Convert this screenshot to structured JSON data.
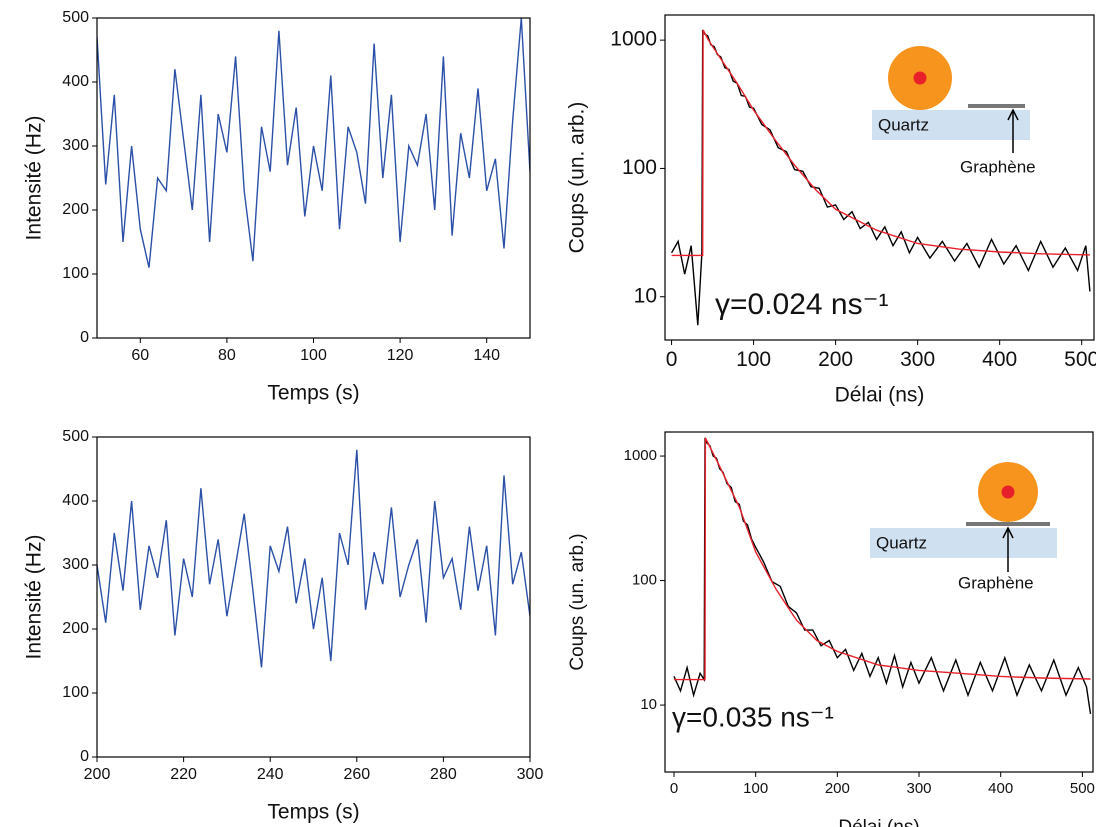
{
  "chart_data": [
    {
      "type": "line",
      "xlabel": "Temps (s)",
      "ylabel": "Intensité (Hz)",
      "xlim": [
        50,
        150
      ],
      "xticks": [
        60,
        80,
        100,
        120,
        140
      ],
      "ylim": [
        0,
        500
      ],
      "yticks": [
        0,
        100,
        200,
        300,
        400,
        500
      ],
      "series": [
        {
          "color": "#2b50a8",
          "x": [
            50,
            52,
            54,
            56,
            58,
            60,
            62,
            64,
            66,
            68,
            70,
            72,
            74,
            76,
            78,
            80,
            82,
            84,
            86,
            88,
            90,
            92,
            94,
            96,
            98,
            100,
            102,
            104,
            106,
            108,
            110,
            112,
            114,
            116,
            118,
            120,
            122,
            124,
            126,
            128,
            130,
            132,
            134,
            136,
            138,
            140,
            142,
            144,
            146,
            148,
            150
          ],
          "values": [
            470,
            240,
            380,
            150,
            300,
            170,
            110,
            250,
            230,
            420,
            310,
            200,
            380,
            150,
            350,
            290,
            440,
            230,
            120,
            330,
            260,
            480,
            270,
            360,
            190,
            300,
            230,
            410,
            170,
            330,
            290,
            210,
            460,
            250,
            380,
            150,
            300,
            270,
            350,
            200,
            440,
            160,
            320,
            250,
            390,
            230,
            280,
            140,
            340,
            500,
            260
          ]
        }
      ]
    },
    {
      "type": "line",
      "xlabel": "Temps (s)",
      "ylabel": "Intensité (Hz)",
      "xlim": [
        200,
        300
      ],
      "xticks": [
        200,
        220,
        240,
        260,
        280,
        300
      ],
      "ylim": [
        0,
        500
      ],
      "yticks": [
        0,
        100,
        200,
        300,
        400,
        500
      ],
      "series": [
        {
          "color": "#2b50a8",
          "x": [
            200,
            202,
            204,
            206,
            208,
            210,
            212,
            214,
            216,
            218,
            220,
            222,
            224,
            226,
            228,
            230,
            232,
            234,
            236,
            238,
            240,
            242,
            244,
            246,
            248,
            250,
            252,
            254,
            256,
            258,
            260,
            262,
            264,
            266,
            268,
            270,
            272,
            274,
            276,
            278,
            280,
            282,
            284,
            286,
            288,
            290,
            292,
            294,
            296,
            298,
            300
          ],
          "values": [
            300,
            210,
            350,
            260,
            400,
            230,
            330,
            280,
            370,
            190,
            310,
            250,
            420,
            270,
            340,
            220,
            300,
            380,
            260,
            140,
            330,
            290,
            360,
            240,
            310,
            200,
            280,
            150,
            350,
            300,
            480,
            230,
            320,
            270,
            390,
            250,
            300,
            340,
            210,
            400,
            280,
            310,
            230,
            360,
            260,
            330,
            190,
            440,
            270,
            320,
            220
          ]
        }
      ]
    },
    {
      "type": "line",
      "log_y": true,
      "xlabel": "Délai (ns)",
      "ylabel": "Coups (un. arb.)",
      "annotation": "γ=0.024 ns⁻¹",
      "inset": {
        "substrate": "Quartz",
        "layer": "Graphène"
      },
      "xlim": [
        -8,
        515
      ],
      "xticks": [
        0,
        100,
        200,
        300,
        400,
        500
      ],
      "ylim": [
        4.6,
        1570
      ],
      "yticks": [
        10,
        100,
        1000
      ],
      "series": [
        {
          "color": "#000000",
          "x": [
            0,
            8,
            16,
            24,
            32,
            37,
            38,
            40,
            44,
            48,
            52,
            56,
            60,
            65,
            70,
            75,
            80,
            85,
            90,
            95,
            100,
            110,
            120,
            130,
            140,
            150,
            160,
            170,
            180,
            190,
            200,
            210,
            220,
            230,
            240,
            250,
            260,
            270,
            280,
            290,
            300,
            315,
            330,
            345,
            360,
            375,
            390,
            405,
            420,
            435,
            450,
            465,
            480,
            495,
            505,
            510
          ],
          "values": [
            22,
            27,
            15,
            25,
            6,
            22,
            1200,
            1120,
            1080,
            920,
            890,
            770,
            740,
            610,
            590,
            480,
            460,
            370,
            365,
            300,
            295,
            220,
            200,
            145,
            135,
            98,
            95,
            72,
            70,
            50,
            52,
            40,
            46,
            34,
            38,
            28,
            35,
            25,
            32,
            22,
            29,
            20,
            27,
            19,
            26,
            17,
            28,
            18,
            25,
            16,
            27,
            17,
            24,
            16,
            25,
            11
          ]
        },
        {
          "color": "#e8202a",
          "x": [
            0,
            38,
            38.5,
            45,
            55,
            65,
            80,
            100,
            125,
            150,
            175,
            200,
            250,
            300,
            350,
            400,
            450,
            510
          ],
          "values": [
            21,
            21,
            1200,
            1000,
            800,
            640,
            460,
            285,
            171,
            106,
            69,
            48,
            33,
            26,
            23.5,
            22.3,
            21.6,
            21.2
          ]
        }
      ]
    },
    {
      "type": "line",
      "log_y": true,
      "xlabel": "Délai (ns)",
      "ylabel": "Coups (un. arb.)",
      "annotation": "γ=0.035 ns⁻¹",
      "inset": {
        "substrate": "Quartz",
        "layer": "Graphène"
      },
      "xlim": [
        -11,
        513
      ],
      "xticks": [
        0,
        100,
        200,
        300,
        400,
        500
      ],
      "ylim": [
        2.9,
        1560
      ],
      "yticks": [
        10,
        100,
        1000
      ],
      "series": [
        {
          "color": "#000000",
          "x": [
            0,
            8,
            16,
            24,
            32,
            37,
            38,
            40,
            44,
            48,
            52,
            56,
            60,
            65,
            70,
            75,
            80,
            85,
            90,
            95,
            100,
            110,
            120,
            130,
            140,
            150,
            160,
            170,
            180,
            190,
            200,
            210,
            220,
            230,
            240,
            250,
            260,
            270,
            280,
            290,
            300,
            315,
            330,
            345,
            360,
            375,
            390,
            405,
            420,
            435,
            450,
            465,
            480,
            495,
            505,
            510
          ],
          "values": [
            17,
            13,
            20,
            12,
            18,
            16,
            1400,
            1280,
            1210,
            1000,
            960,
            790,
            740,
            600,
            560,
            430,
            410,
            300,
            280,
            215,
            185,
            140,
            98,
            90,
            62,
            55,
            40,
            40,
            30,
            33,
            24,
            28,
            19,
            26,
            17,
            24,
            15,
            25,
            14,
            22,
            15,
            24,
            13,
            23,
            12,
            22,
            13,
            24,
            12,
            21,
            13,
            23,
            12,
            20,
            14,
            8.5
          ]
        },
        {
          "color": "#e8202a",
          "x": [
            0,
            38,
            38.5,
            45,
            55,
            65,
            80,
            100,
            125,
            150,
            175,
            200,
            250,
            300,
            350,
            400,
            450,
            510
          ],
          "values": [
            16,
            16,
            1400,
            1150,
            850,
            620,
            390,
            170,
            85,
            48,
            33,
            27,
            21,
            19,
            18,
            17,
            16.5,
            16.2
          ]
        }
      ]
    }
  ]
}
